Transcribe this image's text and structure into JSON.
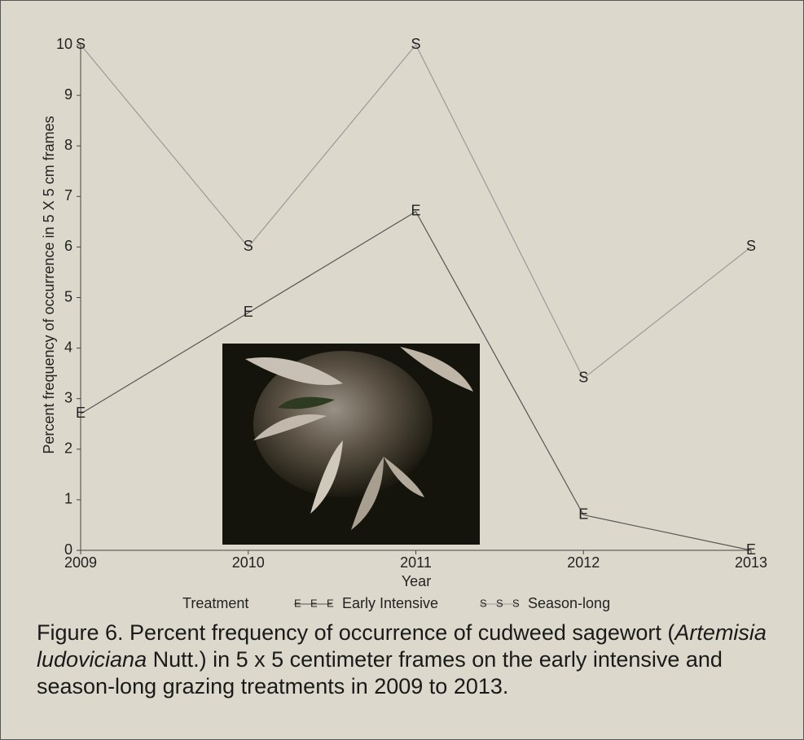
{
  "chart_data": {
    "type": "line",
    "x_label": "Year",
    "y_label": "Percent frequency of occurrence in 5 X 5 cm frames",
    "x": [
      2009,
      2010,
      2011,
      2012,
      2013
    ],
    "xlim": [
      2009,
      2013
    ],
    "xticks": [
      2009,
      2010,
      2011,
      2012,
      2013
    ],
    "ylim": [
      0,
      10
    ],
    "yticks": [
      0,
      1,
      2,
      3,
      4,
      5,
      6,
      7,
      8,
      9,
      10
    ],
    "legend_title": "Treatment",
    "series": [
      {
        "name": "Early Intensive",
        "marker": "E",
        "color": "#1e1e1e",
        "line_color": "#555555",
        "values": [
          2.7,
          4.7,
          6.7,
          0.7,
          0.0
        ]
      },
      {
        "name": "Season-long",
        "marker": "S",
        "color": "#4a4a9a",
        "line_color": "#9a9a9a",
        "values": [
          10,
          6,
          10,
          3.4,
          6
        ]
      }
    ],
    "caption": [
      "Figure 6. Percent frequency of occurrence of cudweed sagewort (",
      "Artemisia ludoviciana",
      " Nutt.) in 5 x 5 centimeter frames on the early intensive and season-long grazing treatments in 2009 to 2013."
    ]
  }
}
